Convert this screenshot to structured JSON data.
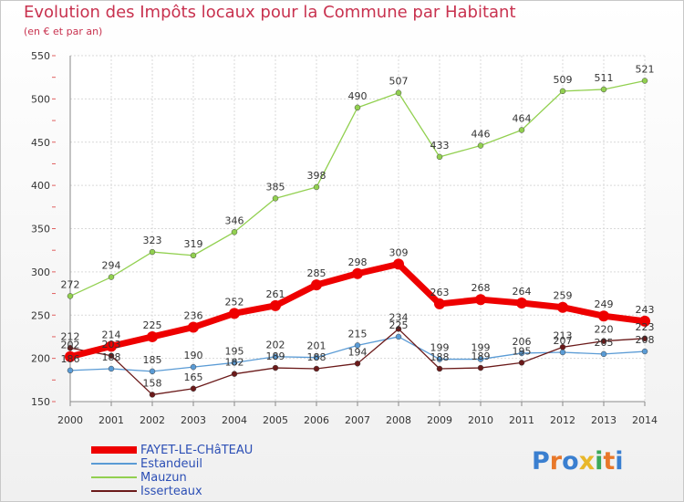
{
  "title": "Evolution des Impôts locaux pour la Commune par Habitant",
  "subtitle": "(en € et par an)",
  "logo": {
    "text": "Proxiti",
    "colors": [
      "#3a7fd0",
      "#e8782a",
      "#3a7fd0",
      "#e8b72a",
      "#3aa85a",
      "#e8782a",
      "#3a7fd0"
    ]
  },
  "chart_data": {
    "type": "line",
    "x": [
      "2000",
      "2001",
      "2002",
      "2003",
      "2004",
      "2005",
      "2006",
      "2007",
      "2008",
      "2009",
      "2010",
      "2011",
      "2012",
      "2013",
      "2014"
    ],
    "ylim": [
      150,
      550
    ],
    "yticks": [
      150,
      200,
      250,
      300,
      350,
      400,
      450,
      500,
      550
    ],
    "grid": true,
    "legend_position": "bottom-left",
    "series": [
      {
        "name": "FAYET-LE-CHâTEAU",
        "color": "#ee0000",
        "values": [
          202,
          214,
          225,
          236,
          252,
          261,
          285,
          298,
          309,
          263,
          268,
          264,
          259,
          249,
          243
        ]
      },
      {
        "name": "Estandeuil",
        "color": "#5a9bd5",
        "values": [
          186,
          188,
          185,
          190,
          195,
          202,
          201,
          215,
          225,
          199,
          199,
          206,
          207,
          205,
          208
        ]
      },
      {
        "name": "Mauzun",
        "color": "#92d050",
        "values": [
          272,
          294,
          323,
          319,
          346,
          385,
          398,
          490,
          507,
          433,
          446,
          464,
          509,
          511,
          521
        ]
      },
      {
        "name": "Isserteaux",
        "color": "#6b1a1a",
        "values": [
          212,
          203,
          158,
          165,
          182,
          189,
          188,
          194,
          234,
          188,
          189,
          195,
          213,
          220,
          223
        ]
      }
    ]
  }
}
